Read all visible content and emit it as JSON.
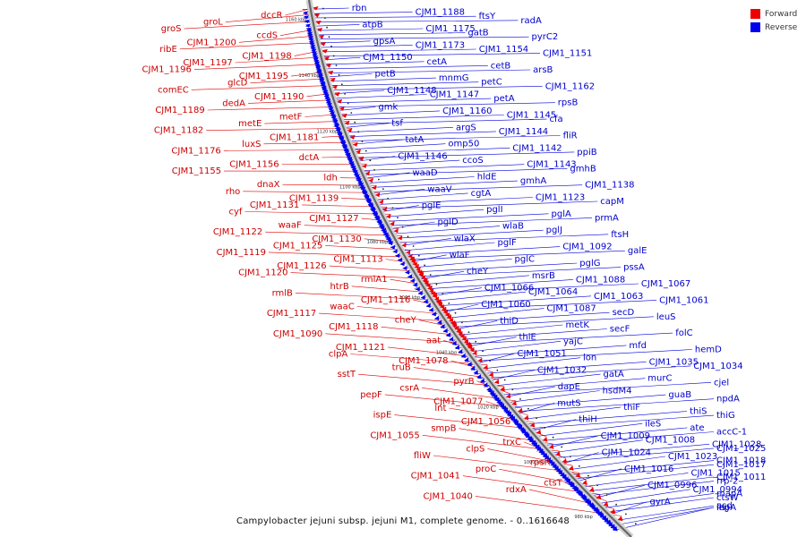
{
  "caption": "Campylobacter jejuni subsp. jejuni M1, complete genome. - 0..1616648",
  "legend": {
    "forward_label": "Forward",
    "reverse_label": "Reverse",
    "forward_color": "#ee0000",
    "reverse_color": "#0000ee"
  },
  "ticks": [
    "1160 kbp",
    "1140 kbp",
    "1120 kbp",
    "1100 kbp",
    "1080 kbp",
    "1060 kbp",
    "1040 kbp",
    "1020 kbp",
    "1000 kbp",
    "980 kbp"
  ],
  "forward_genes": [
    "dccR",
    "groL",
    "groS",
    "ccdS",
    "CJM1_1200",
    "ribE",
    "CJM1_1198",
    "CJM1_1197",
    "CJM1_1196",
    "CJM1_1195",
    "glcD",
    "comEC",
    "CJM1_1190",
    "dedA",
    "CJM1_1189",
    "metF",
    "metE",
    "CJM1_1182",
    "CJM1_1181",
    "luxS",
    "CJM1_1176",
    "dctA",
    "CJM1_1156",
    "CJM1_1155",
    "ldh",
    "dnaX",
    "rho",
    "CJM1_1139",
    "CJM1_1131",
    "cyf",
    "CJM1_1127",
    "waaF",
    "CJM1_1122",
    "CJM1_1130",
    "CJM1_1125",
    "CJM1_1119",
    "CJM1_1113",
    "CJM1_1126",
    "CJM1_1120",
    "rmlA1",
    "htrB",
    "rmlB",
    "CJM1_1116",
    "waaC",
    "CJM1_1117",
    "cheY",
    "CJM1_1118",
    "CJM1_1090",
    "aat",
    "CJM1_1121",
    "clpA",
    "CJM1_1078",
    "truB",
    "sstT",
    "pyrB",
    "csrA",
    "pepF",
    "CJM1_1077",
    "lnt",
    "ispE",
    "CJM1_1056",
    "smpB",
    "CJM1_1055",
    "trxC",
    "clpS",
    "fliW",
    "rpsR",
    "proC",
    "CJM1_1041",
    "ctsT",
    "rdxA",
    "CJM1_1040"
  ],
  "reverse_genes": [
    "rbn",
    "CJM1_1188",
    "ftsY",
    "radA",
    "atpB",
    "CJM1_1175",
    "gatB",
    "pyrC2",
    "gpsA",
    "CJM1_1173",
    "CJM1_1154",
    "CJM1_1151",
    "CJM1_1150",
    "cetA",
    "cetB",
    "arsB",
    "petB",
    "mnmG",
    "petC",
    "CJM1_1162",
    "CJM1_1148",
    "CJM1_1147",
    "petA",
    "rpsB",
    "gmk",
    "CJM1_1160",
    "CJM1_1145",
    "cfa",
    "tsf",
    "argS",
    "CJM1_1144",
    "fliR",
    "tatA",
    "omp50",
    "CJM1_1142",
    "ppiB",
    "CJM1_1146",
    "ccoS",
    "CJM1_1143",
    "gmhB",
    "waaD",
    "hldE",
    "gmhA",
    "CJM1_1138",
    "waaV",
    "cgtA",
    "CJM1_1123",
    "capM",
    "pglE",
    "pglI",
    "pglA",
    "prmA",
    "pglD",
    "wlaB",
    "pglJ",
    "ftsH",
    "wlaX",
    "pglF",
    "CJM1_1092",
    "galE",
    "wlaF",
    "pglC",
    "pglG",
    "pssA",
    "cheY",
    "msrB",
    "CJM1_1088",
    "CJM1_1067",
    "CJM1_1066",
    "CJM1_1064",
    "CJM1_1063",
    "CJM1_1061",
    "CJM1_1060",
    "CJM1_1087",
    "secD",
    "leuS",
    "thiD",
    "metK",
    "secF",
    "folC",
    "thiE",
    "yajC",
    "mfd",
    "hemD",
    "CJM1_1051",
    "lon",
    "CJM1_1035",
    "CJM1_1034",
    "CJM1_1032",
    "gatA",
    "murC",
    "cjel",
    "dapE",
    "hsdM4",
    "guaB",
    "npdA",
    "mutS",
    "thiF",
    "thiS",
    "thiG",
    "thiH",
    "ileS",
    "ate",
    "accC-1",
    "CJM1_1009",
    "CJM1_1008",
    "CJM1_1028",
    "CJM1_1025",
    "CJM1_1024",
    "CJM1_1023",
    "CJM1_1018",
    "CJM1_1017",
    "CJM1_1016",
    "CJM1_1015",
    "CJM1_1011",
    "rrp-2",
    "CJM1_0996",
    "CJM1_0994",
    "mapA",
    "ctsW",
    "gyrA",
    "asd",
    "livJ",
    "lepA"
  ]
}
